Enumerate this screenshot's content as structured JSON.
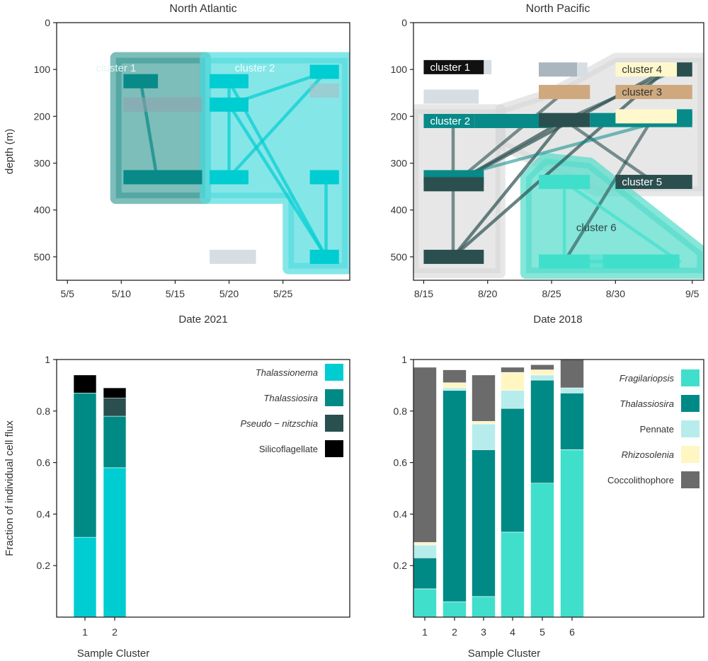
{
  "y_label_depth": "depth (m)",
  "y_label_fraction": "Fraction of individual cell flux",
  "top_left": {
    "title": "North Atlantic",
    "xlabel": "Date 2021",
    "y_ticks": [
      "0",
      "100",
      "200",
      "300",
      "400",
      "500"
    ],
    "x_ticks": [
      "5/5",
      "5/10",
      "5/15",
      "5/20",
      "5/25"
    ],
    "hulls": [
      {
        "label": "cluster 1",
        "color": "#3f9e9a"
      },
      {
        "label": "cluster 2",
        "color": "#56dcdf"
      }
    ]
  },
  "top_right": {
    "title": "North Pacific",
    "xlabel": "Date 2018",
    "y_ticks": [
      "0",
      "100",
      "200",
      "300",
      "400",
      "500"
    ],
    "x_ticks": [
      "8/15",
      "8/20",
      "8/25",
      "8/30",
      "9/5"
    ],
    "hulls": [
      {
        "label": "cluster 6",
        "color": "#57dccb"
      }
    ],
    "boxes": [
      {
        "label": "cluster 1",
        "color": "#111111"
      },
      {
        "label": "cluster 2",
        "color": "#078a88"
      },
      {
        "label": "cluster 3",
        "color": "#cfa97d"
      },
      {
        "label": "cluster 4",
        "color": "#fff8cc"
      },
      {
        "label": "cluster 5",
        "color": "#2b4f4f"
      }
    ]
  },
  "bottom_left": {
    "xlabel": "Sample Cluster",
    "legend": [
      {
        "label": "Thalassionema",
        "italic": true,
        "color": "#00cdd1"
      },
      {
        "label": "Thalassiosira",
        "italic": true,
        "color": "#008a86"
      },
      {
        "label": "Pseudo − nitzschia",
        "italic": true,
        "color": "#2a4f4f"
      },
      {
        "label": "Silicoflagellate",
        "italic": false,
        "color": "#000000"
      }
    ]
  },
  "bottom_right": {
    "xlabel": "Sample Cluster",
    "legend": [
      {
        "label": "Fragilariopsis",
        "italic": true,
        "color": "#40dfcc"
      },
      {
        "label": "Thalassiosira",
        "italic": true,
        "color": "#008a86"
      },
      {
        "label": "Pennate",
        "italic": false,
        "color": "#b7ecec"
      },
      {
        "label": "Rhizosolenia",
        "italic": true,
        "color": "#fff6c2"
      },
      {
        "label": "Coccolithophore",
        "italic": false,
        "color": "#6b6b6b"
      }
    ]
  },
  "chart_data": [
    {
      "type": "bar",
      "id": "north-atlantic-depth-date",
      "title": "North Atlantic",
      "xlabel": "Date 2021",
      "ylabel": "depth (m)",
      "ylim": [
        550,
        0
      ],
      "note_axis": "x in days since 5/5/2021 tick 5/5=0",
      "x_ticks": [
        "5/5",
        "5/10",
        "5/15",
        "5/20",
        "5/25"
      ],
      "samples": [
        {
          "x0": 5.2,
          "x1": 8.4,
          "depth": 125,
          "color": "#078a88"
        },
        {
          "x0": 5.2,
          "x1": 12.5,
          "depth": 175,
          "color": "#8fa3ad",
          "alpha": 0.55
        },
        {
          "x0": 5.2,
          "x1": 12.5,
          "depth": 330,
          "color": "#078a88"
        },
        {
          "x0": 13.2,
          "x1": 16.8,
          "depth": 125,
          "color": "#00cdd1"
        },
        {
          "x0": 13.2,
          "x1": 16.8,
          "depth": 175,
          "color": "#00cdd1"
        },
        {
          "x0": 13.2,
          "x1": 16.8,
          "depth": 330,
          "color": "#00cdd1"
        },
        {
          "x0": 13.2,
          "x1": 17.5,
          "depth": 500,
          "color": "#d6dde3"
        },
        {
          "x0": 22.5,
          "x1": 25.2,
          "depth": 105,
          "color": "#00cdd1"
        },
        {
          "x0": 22.5,
          "x1": 25.2,
          "depth": 145,
          "color": "#a9b9c0",
          "alpha": 0.55
        },
        {
          "x0": 22.5,
          "x1": 25.2,
          "depth": 330,
          "color": "#00cdd1"
        },
        {
          "x0": 22.5,
          "x1": 25.2,
          "depth": 500,
          "color": "#00cdd1"
        }
      ],
      "links": [
        {
          "x1": 6.8,
          "y1": 125,
          "x2": 8.3,
          "y2": 330,
          "color": "#078a88"
        },
        {
          "x1": 15.0,
          "y1": 125,
          "x2": 15.0,
          "y2": 330,
          "color": "#00cdd1"
        },
        {
          "x1": 15.0,
          "y1": 175,
          "x2": 24.0,
          "y2": 500,
          "color": "#00cdd1"
        },
        {
          "x1": 15.0,
          "y1": 125,
          "x2": 24.0,
          "y2": 500,
          "color": "#00cdd1"
        },
        {
          "x1": 15.0,
          "y1": 330,
          "x2": 24.0,
          "y2": 105,
          "color": "#00cdd1"
        },
        {
          "x1": 15.0,
          "y1": 175,
          "x2": 24.0,
          "y2": 105,
          "color": "#00cdd1"
        },
        {
          "x1": 24.0,
          "y1": 330,
          "x2": 24.0,
          "y2": 500,
          "color": "#00cdd1"
        }
      ],
      "hull_polygons": [
        {
          "label": "cluster 1",
          "points": [
            [
              4.5,
              75
            ],
            [
              12.8,
              75
            ],
            [
              12.8,
              375
            ],
            [
              4.5,
              375
            ]
          ]
        },
        {
          "label": "cluster 2",
          "points": [
            [
              12.8,
              75
            ],
            [
              26.0,
              75
            ],
            [
              26.0,
              525
            ],
            [
              20.5,
              525
            ],
            [
              20.5,
              375
            ],
            [
              12.8,
              375
            ]
          ]
        }
      ]
    },
    {
      "type": "bar",
      "id": "north-pacific-depth-date",
      "title": "North Pacific",
      "xlabel": "Date 2018",
      "ylabel": "depth (m)",
      "ylim": [
        550,
        0
      ],
      "note_axis": "x in days since 8/15/2018",
      "x_ticks": [
        "8/15",
        "8/20",
        "8/25",
        "8/30",
        "9/5"
      ],
      "x_tick_positions": [
        0,
        5,
        10,
        15,
        21
      ],
      "samples": [
        {
          "x0": 0.0,
          "x1": 4.7,
          "depth": 95,
          "color": "#111111",
          "label_idx": 0
        },
        {
          "x0": 4.7,
          "x1": 5.3,
          "depth": 95,
          "color": "#d6dde3"
        },
        {
          "x0": 0.0,
          "x1": 4.3,
          "depth": 158,
          "color": "#d6dde3"
        },
        {
          "x0": 0.0,
          "x1": 4.0,
          "depth": 210,
          "color": "#078a88",
          "label_idx": 1
        },
        {
          "x0": 4.0,
          "x1": 10.0,
          "depth": 210,
          "color": "#078a88"
        },
        {
          "x0": 0.0,
          "x1": 4.7,
          "depth": 330,
          "color": "#078a88"
        },
        {
          "x0": 0.0,
          "x1": 4.7,
          "depth": 345,
          "color": "#2b4f4f"
        },
        {
          "x0": 0.0,
          "x1": 4.7,
          "depth": 500,
          "color": "#2b4f4f"
        },
        {
          "x0": 9.0,
          "x1": 12.0,
          "depth": 100,
          "color": "#a9b6c0"
        },
        {
          "x0": 12.0,
          "x1": 12.8,
          "depth": 100,
          "color": "#d6dde3"
        },
        {
          "x0": 9.0,
          "x1": 13.0,
          "depth": 148,
          "color": "#cfa97d"
        },
        {
          "x0": 9.0,
          "x1": 13.0,
          "depth": 208,
          "color": "#2b4f4f"
        },
        {
          "x0": 13.0,
          "x1": 21.0,
          "depth": 208,
          "color": "#078a88"
        },
        {
          "x0": 9.0,
          "x1": 13.0,
          "depth": 340,
          "color": "#40dfcc"
        },
        {
          "x0": 9.0,
          "x1": 13.0,
          "depth": 510,
          "color": "#40dfcc"
        },
        {
          "x0": 13.0,
          "x1": 14.0,
          "depth": 510,
          "color": "#40dfcc",
          "alpha": 0.5
        },
        {
          "x0": 14.0,
          "x1": 20.0,
          "depth": 510,
          "color": "#40dfcc"
        },
        {
          "x0": 15.0,
          "x1": 21.0,
          "depth": 148,
          "color": "#cfa97d",
          "label_idx": 2
        },
        {
          "x0": 15.0,
          "x1": 19.8,
          "depth": 100,
          "color": "#fff8cc",
          "label_idx": 3
        },
        {
          "x0": 19.8,
          "x1": 21.0,
          "depth": 100,
          "color": "#2b4f4f"
        },
        {
          "x0": 15.0,
          "x1": 19.8,
          "depth": 200,
          "color": "#fff8cc"
        },
        {
          "x0": 19.8,
          "x1": 21.0,
          "depth": 200,
          "color": "#078a88"
        },
        {
          "x0": 15.0,
          "x1": 21.0,
          "depth": 340,
          "color": "#2b4f4f",
          "label_idx": 4
        }
      ],
      "links": [
        {
          "x1": 2.3,
          "y1": 210,
          "x2": 2.3,
          "y2": 500,
          "color": "#2b4f4f",
          "alpha": 0.6
        },
        {
          "x1": 2.3,
          "y1": 345,
          "x2": 11.0,
          "y2": 208,
          "color": "#2b4f4f",
          "alpha": 0.7
        },
        {
          "x1": 2.3,
          "y1": 345,
          "x2": 19.0,
          "y2": 100,
          "color": "#2b4f4f",
          "alpha": 0.7
        },
        {
          "x1": 2.3,
          "y1": 500,
          "x2": 11.0,
          "y2": 208,
          "color": "#2b4f4f",
          "alpha": 0.7
        },
        {
          "x1": 2.3,
          "y1": 500,
          "x2": 19.0,
          "y2": 100,
          "color": "#2b4f4f",
          "alpha": 0.7
        },
        {
          "x1": 2.3,
          "y1": 345,
          "x2": 11.0,
          "y2": 148,
          "color": "#2b4f4f",
          "alpha": 0.6
        },
        {
          "x1": 11.0,
          "y1": 208,
          "x2": 18.0,
          "y2": 340,
          "color": "#2b4f4f",
          "alpha": 0.6
        },
        {
          "x1": 11.0,
          "y1": 208,
          "x2": 19.0,
          "y2": 110,
          "color": "#2b4f4f",
          "alpha": 0.6
        },
        {
          "x1": 11.0,
          "y1": 510,
          "x2": 18.0,
          "y2": 200,
          "color": "#2b4f4f",
          "alpha": 0.6
        },
        {
          "x1": 2.3,
          "y1": 330,
          "x2": 20.0,
          "y2": 200,
          "color": "#078a88",
          "alpha": 0.55
        },
        {
          "x1": 11.0,
          "y1": 340,
          "x2": 11.0,
          "y2": 510,
          "color": "#40dfcc"
        },
        {
          "x1": 11.0,
          "y1": 340,
          "x2": 20.0,
          "y2": 510,
          "color": "#40dfcc"
        },
        {
          "x1": 13.0,
          "y1": 510,
          "x2": 14.0,
          "y2": 510,
          "color": "#40dfcc"
        }
      ],
      "gray_hulls": [
        {
          "points": [
            [
              -0.8,
              185
            ],
            [
              6.0,
              185
            ],
            [
              6.0,
              535
            ],
            [
              -0.8,
              535
            ]
          ]
        },
        {
          "points": [
            [
              6.0,
              185
            ],
            [
              10.0,
              150
            ],
            [
              15.0,
              75
            ],
            [
              21.8,
              75
            ],
            [
              21.8,
              360
            ],
            [
              13.5,
              360
            ],
            [
              6.0,
              260
            ]
          ]
        }
      ],
      "hull_polygons": [
        {
          "label": "cluster 6",
          "points": [
            [
              8.0,
              330
            ],
            [
              9.5,
              290
            ],
            [
              13.0,
              300
            ],
            [
              21.8,
              490
            ],
            [
              21.8,
              535
            ],
            [
              8.0,
              535
            ]
          ]
        }
      ]
    },
    {
      "type": "bar",
      "id": "north-atlantic-cell-flux",
      "xlabel": "Sample Cluster",
      "ylabel": "Fraction of individual cell flux",
      "ylim": [
        0,
        1
      ],
      "categories": [
        "1",
        "2"
      ],
      "series": [
        {
          "name": "Thalassionema",
          "values": [
            0.31,
            0.58
          ],
          "color": "#00cdd1"
        },
        {
          "name": "Thalassiosira",
          "values": [
            0.56,
            0.2
          ],
          "color": "#008a86"
        },
        {
          "name": "Pseudo − nitzschia",
          "values": [
            0.0,
            0.07
          ],
          "color": "#2a4f4f"
        },
        {
          "name": "Silicoflagellate",
          "values": [
            0.07,
            0.04
          ],
          "color": "#000000"
        }
      ],
      "legend_loc": "top-right"
    },
    {
      "type": "bar",
      "id": "north-pacific-cell-flux",
      "xlabel": "Sample Cluster",
      "ylabel": "Fraction of individual cell flux",
      "ylim": [
        0,
        1
      ],
      "categories": [
        "1",
        "2",
        "3",
        "4",
        "5",
        "6"
      ],
      "series": [
        {
          "name": "Fragilariopsis",
          "values": [
            0.11,
            0.06,
            0.08,
            0.33,
            0.52,
            0.65
          ],
          "color": "#40dfcc"
        },
        {
          "name": "Thalassiosira",
          "values": [
            0.12,
            0.82,
            0.57,
            0.48,
            0.4,
            0.22
          ],
          "color": "#008a86"
        },
        {
          "name": "Pennate",
          "values": [
            0.05,
            0.01,
            0.1,
            0.07,
            0.02,
            0.02
          ],
          "color": "#b7ecec"
        },
        {
          "name": "Rhizosolenia",
          "values": [
            0.01,
            0.02,
            0.01,
            0.07,
            0.02,
            0.0
          ],
          "color": "#fff6c2"
        },
        {
          "name": "Coccolithophore",
          "values": [
            0.68,
            0.05,
            0.18,
            0.02,
            0.02,
            0.11
          ],
          "color": "#6b6b6b"
        }
      ],
      "legend_loc": "top-right"
    }
  ]
}
